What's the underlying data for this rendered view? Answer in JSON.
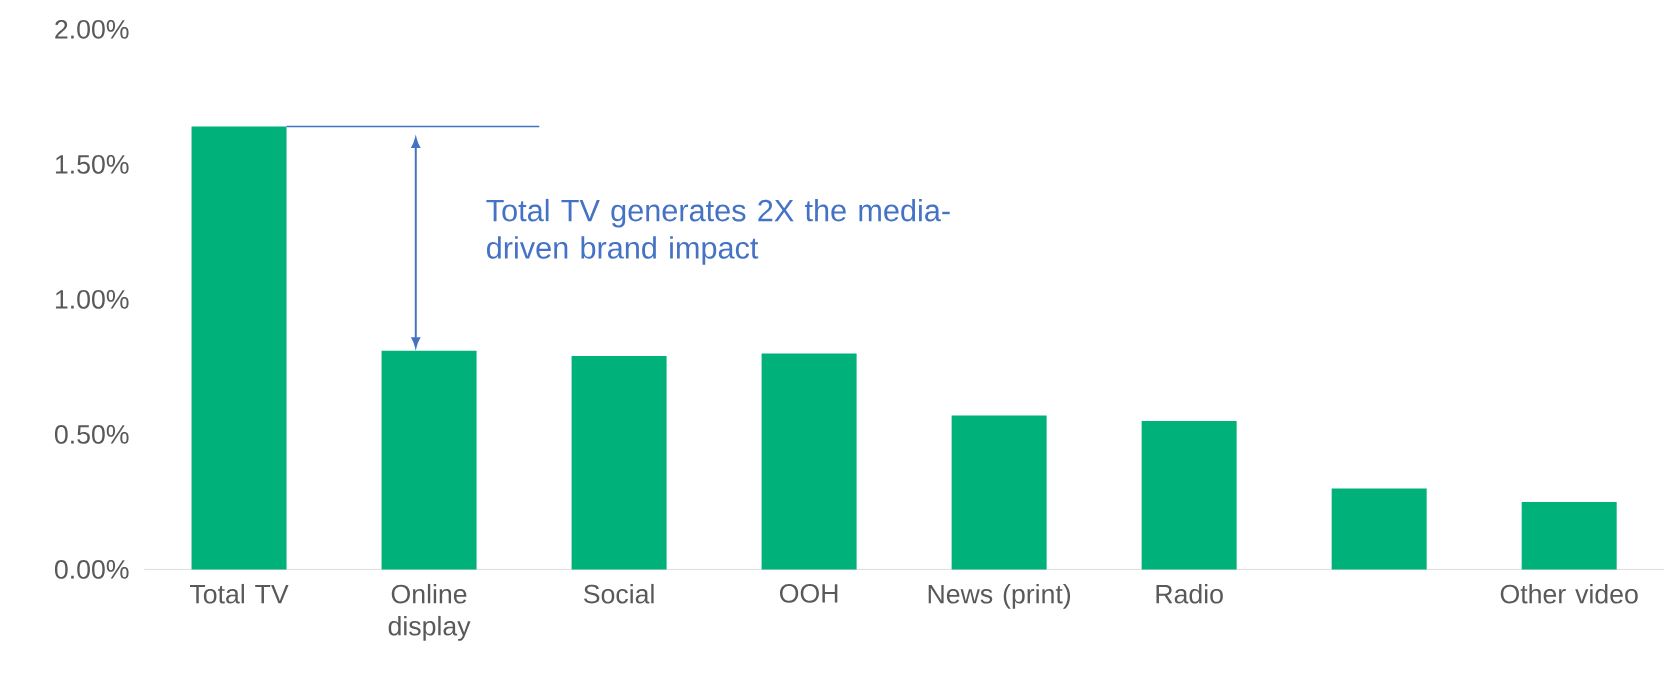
{
  "chart_data": {
    "type": "bar",
    "categories": [
      "Total TV",
      "Online display",
      "Social",
      "OOH",
      "News (print)",
      "Radio",
      null,
      "Other video"
    ],
    "values": [
      1.64,
      0.81,
      0.79,
      0.8,
      0.57,
      0.55,
      0.3,
      0.25
    ],
    "color": "#00b27a",
    "ylim": [
      0,
      2
    ],
    "yticks": [
      {
        "value": 0,
        "label": "0.00%"
      },
      {
        "value": 0.5,
        "label": "0.50%"
      },
      {
        "value": 1,
        "label": "1.00%"
      },
      {
        "value": 1.5,
        "label": "1.50%"
      },
      {
        "value": 2,
        "label": "2.00%"
      }
    ],
    "ref_lines": [
      {
        "axis": "y",
        "value": 1.64,
        "color": "#4472c4"
      }
    ],
    "annotations": [
      "Total TV generates 2X the media-driven brand impact"
    ]
  }
}
